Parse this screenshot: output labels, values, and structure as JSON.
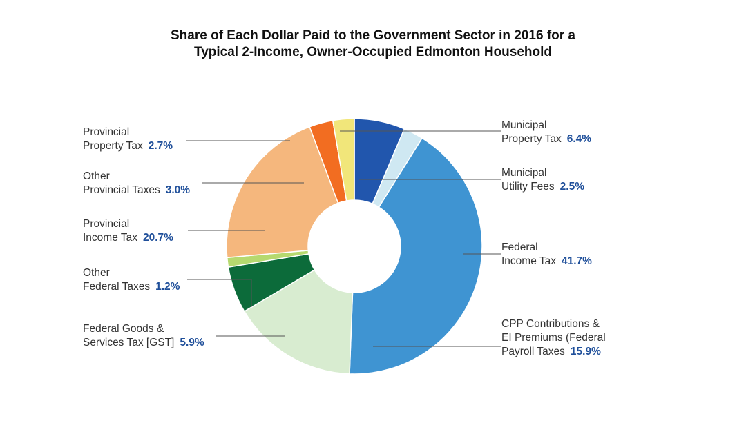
{
  "colors": {
    "percent_text": "#1f4f9a",
    "leader_line": "#555555"
  },
  "chart_data": {
    "type": "pie",
    "donut": true,
    "title": [
      "Share of Each Dollar Paid to the Government Sector in 2016 for a",
      "Typical 2-Income, Owner-Occupied Edmonton Household"
    ],
    "slices": [
      {
        "label": [
          "Municipal",
          "Property Tax"
        ],
        "percent_label": "6.4%",
        "value": 6.4,
        "color": "#2156ad"
      },
      {
        "label": [
          "Municipal",
          "Utility Fees"
        ],
        "percent_label": "2.5%",
        "value": 2.5,
        "color": "#cfe8f2"
      },
      {
        "label": [
          "Federal",
          "Income Tax"
        ],
        "percent_label": "41.7%",
        "value": 41.7,
        "color": "#3f94d2"
      },
      {
        "label": [
          "CPP Contributions &",
          "EI Premiums (Federal",
          "Payroll Taxes"
        ],
        "percent_label": "15.9%",
        "value": 15.9,
        "color": "#d8ecd0"
      },
      {
        "label": [
          "Federal Goods &",
          "Services Tax [GST]"
        ],
        "percent_label": "5.9%",
        "value": 5.9,
        "color": "#0c6b3a"
      },
      {
        "label": [
          "Other",
          "Federal Taxes"
        ],
        "percent_label": "1.2%",
        "value": 1.2,
        "color": "#b6d96f"
      },
      {
        "label": [
          "Provincial",
          "Income Tax"
        ],
        "percent_label": "20.7%",
        "value": 20.7,
        "color": "#f5b77d"
      },
      {
        "label": [
          "Other",
          "Provincial Taxes"
        ],
        "percent_label": "3.0%",
        "value": 3.0,
        "color": "#f26d21"
      },
      {
        "label": [
          "Provincial",
          "Property Tax"
        ],
        "percent_label": "2.7%",
        "value": 2.7,
        "color": "#f1e67a"
      }
    ]
  }
}
